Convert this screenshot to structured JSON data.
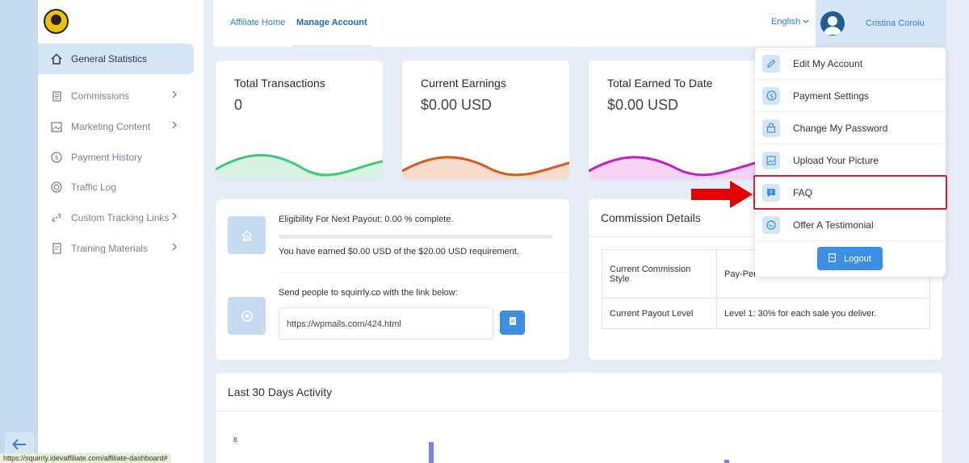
{
  "sidebar": {
    "items": [
      {
        "label": "General Statistics",
        "icon": "home-icon",
        "active": true,
        "has_submenu": false
      },
      {
        "label": "Commissions",
        "icon": "document-icon",
        "active": false,
        "has_submenu": true
      },
      {
        "label": "Marketing Content",
        "icon": "image-icon",
        "active": false,
        "has_submenu": true
      },
      {
        "label": "Payment History",
        "icon": "dollar-circle-icon",
        "active": false,
        "has_submenu": false
      },
      {
        "label": "Traffic Log",
        "icon": "target-icon",
        "active": false,
        "has_submenu": false
      },
      {
        "label": "Custom Tracking Links",
        "icon": "link-icon",
        "active": false,
        "has_submenu": true
      },
      {
        "label": "Training Materials",
        "icon": "book-icon",
        "active": false,
        "has_submenu": true
      }
    ]
  },
  "topbar": {
    "tabs": [
      {
        "label": "Affiliate Home",
        "active": false
      },
      {
        "label": "Manage Account",
        "active": true
      }
    ],
    "language": "English",
    "username": "Cristina Coroiu"
  },
  "stats": [
    {
      "title": "Total Transactions",
      "value": "0",
      "color": "#3cc97a"
    },
    {
      "title": "Current Earnings",
      "value": "$0.00 USD",
      "color": "#d85a1a"
    },
    {
      "title": "Total Earned To Date",
      "value": "$0.00 USD",
      "color": "#c21fc8"
    }
  ],
  "payout": {
    "eligibility": "Eligibility For Next Payout: 0.00 % complete.",
    "progress": 0,
    "earned_text": "You have earned $0.00 USD of the $20.00 USD requirement.",
    "link_prompt": "Send people to squirrly.co with the link below:",
    "link": "https://wpmails.com/424.html"
  },
  "commission": {
    "title": "Commission Details",
    "rows": [
      {
        "label": "Current Commission Style",
        "value": "Pay-Per"
      },
      {
        "label": "Current Payout Level",
        "value": "Level 1: 30% for each sale you deliver."
      }
    ]
  },
  "dropdown": {
    "items": [
      {
        "label": "Edit My Account",
        "icon": "pencil-icon"
      },
      {
        "label": "Payment Settings",
        "icon": "dollar-circle-icon"
      },
      {
        "label": "Change My Password",
        "icon": "lock-icon"
      },
      {
        "label": "Upload Your Picture",
        "icon": "picture-icon"
      },
      {
        "label": "FAQ",
        "icon": "question-icon"
      },
      {
        "label": "Offer A Testimonial",
        "icon": "chat-icon"
      }
    ],
    "logout_label": "Logout"
  },
  "activity": {
    "title": "Last 30 Days Activity",
    "y_tick": "8"
  },
  "status_bar_url": "https://squirrly.idevaffiliate.com/affiliate-dashboard#",
  "colors": {
    "accent": "#3d8fe6",
    "highlight": "#d0202a",
    "arrow": "#e60000"
  }
}
